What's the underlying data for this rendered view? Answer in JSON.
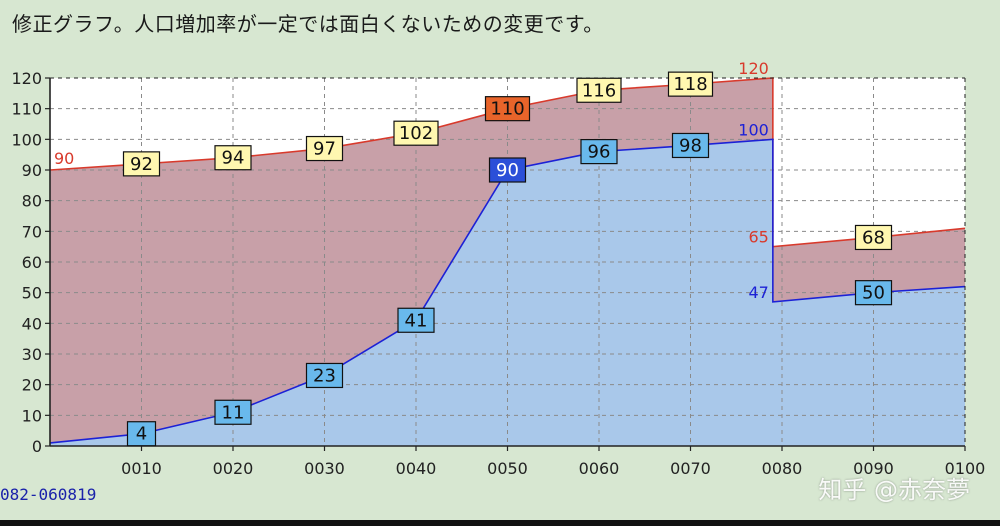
{
  "title": "修正グラフ。人口増加率が一定では面白くないための変更です。",
  "footer_id": "082-060819",
  "watermark": "知乎 @赤奈夢",
  "colors": {
    "background": "#d7e7d1",
    "plot_area": "#ffffff",
    "red_fill": "#c8a0a8",
    "red_line": "#d83a2c",
    "blue_fill": "#a9c8ea",
    "blue_line": "#1c21d6",
    "label_box_yellow": "#fff7b0",
    "label_box_orange": "#e8642a",
    "label_box_lightblue": "#69b9ec",
    "label_box_darkblue": "#2b4fd8",
    "grid": "#8a8a8a"
  },
  "chart_data": {
    "type": "area",
    "grid": true,
    "ylim": [
      0,
      120
    ],
    "xlim": [
      0,
      100
    ],
    "yticks": [
      "0",
      "10",
      "20",
      "30",
      "40",
      "50",
      "60",
      "70",
      "80",
      "90",
      "100",
      "110",
      "120"
    ],
    "xticks": [
      "0010",
      "0020",
      "0030",
      "0040",
      "0050",
      "0060",
      "0070",
      "0080",
      "0090",
      "0100"
    ],
    "series": [
      {
        "role": "upper",
        "points": [
          {
            "x": 0,
            "y": 90
          },
          {
            "x": 10,
            "y": 92
          },
          {
            "x": 20,
            "y": 94
          },
          {
            "x": 30,
            "y": 97
          },
          {
            "x": 40,
            "y": 102
          },
          {
            "x": 50,
            "y": 110
          },
          {
            "x": 60,
            "y": 116
          },
          {
            "x": 70,
            "y": 118
          },
          {
            "x": 79,
            "y": 120
          },
          {
            "x": 79,
            "y": 65
          },
          {
            "x": 90,
            "y": 68
          },
          {
            "x": 100,
            "y": 71
          }
        ]
      },
      {
        "role": "lower",
        "points": [
          {
            "x": 0,
            "y": 1
          },
          {
            "x": 10,
            "y": 4
          },
          {
            "x": 20,
            "y": 11
          },
          {
            "x": 30,
            "y": 23
          },
          {
            "x": 40,
            "y": 41
          },
          {
            "x": 50,
            "y": 90
          },
          {
            "x": 60,
            "y": 96
          },
          {
            "x": 70,
            "y": 98
          },
          {
            "x": 79,
            "y": 100
          },
          {
            "x": 79,
            "y": 47
          },
          {
            "x": 90,
            "y": 50
          },
          {
            "x": 100,
            "y": 52
          }
        ]
      }
    ],
    "box_labels": [
      {
        "text": "92",
        "x": 10,
        "y": 92,
        "style": "yellow"
      },
      {
        "text": "94",
        "x": 20,
        "y": 94,
        "style": "yellow"
      },
      {
        "text": "97",
        "x": 30,
        "y": 97,
        "style": "yellow"
      },
      {
        "text": "102",
        "x": 40,
        "y": 102,
        "style": "yellow"
      },
      {
        "text": "110",
        "x": 50,
        "y": 110,
        "style": "orange"
      },
      {
        "text": "116",
        "x": 60,
        "y": 116,
        "style": "yellow"
      },
      {
        "text": "118",
        "x": 70,
        "y": 118,
        "style": "yellow"
      },
      {
        "text": "68",
        "x": 90,
        "y": 68,
        "style": "yellow"
      },
      {
        "text": "4",
        "x": 10,
        "y": 4,
        "style": "lightblue"
      },
      {
        "text": "11",
        "x": 20,
        "y": 11,
        "style": "lightblue"
      },
      {
        "text": "23",
        "x": 30,
        "y": 23,
        "style": "lightblue"
      },
      {
        "text": "41",
        "x": 40,
        "y": 41,
        "style": "lightblue"
      },
      {
        "text": "90",
        "x": 50,
        "y": 90,
        "style": "darkblue"
      },
      {
        "text": "96",
        "x": 60,
        "y": 96,
        "style": "lightblue"
      },
      {
        "text": "98",
        "x": 70,
        "y": 98,
        "style": "lightblue"
      },
      {
        "text": "50",
        "x": 90,
        "y": 50,
        "style": "lightblue"
      }
    ],
    "plain_labels": [
      {
        "text": "90",
        "x": 0,
        "y": 90,
        "color": "red"
      },
      {
        "text": "120",
        "x": 79,
        "y": 120,
        "color": "red"
      },
      {
        "text": "100",
        "x": 79,
        "y": 100,
        "color": "blue"
      },
      {
        "text": "65",
        "x": 79,
        "y": 65,
        "color": "red"
      },
      {
        "text": "47",
        "x": 79,
        "y": 47,
        "color": "blue"
      }
    ]
  }
}
